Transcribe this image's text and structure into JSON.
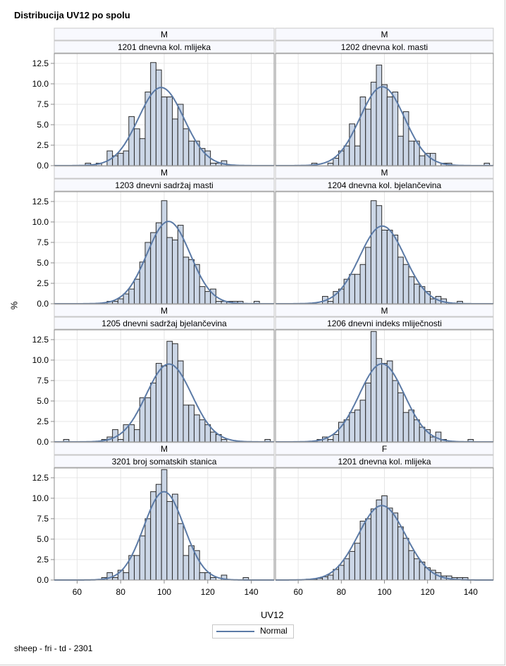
{
  "title": "Distribucija UV12 po spolu",
  "footnote": "sheep - fri - td - 2301",
  "legend": {
    "label": "Normal"
  },
  "colors": {
    "bar_fill": "#cbd6e6",
    "bar_stroke": "#2b2b2b",
    "curve": "#5b7aa6",
    "strip_bg": "#f8f9fe",
    "grid": "#e6e6e6"
  },
  "chart_data": {
    "type": "histogram-panel",
    "title": "Distribucija UV12 po spolu",
    "xlabel": "UV12",
    "ylabel": "%",
    "xlim": [
      49.5,
      150.5
    ],
    "ylim": [
      0,
      13.7
    ],
    "xticks": [
      60,
      80,
      100,
      120,
      140
    ],
    "yticks": [
      "0.0",
      "2.5",
      "5.0",
      "7.5",
      "10.0",
      "12.5"
    ],
    "bin_width": 2.5,
    "grid": true,
    "legend_position": "bottom-center",
    "panels": [
      {
        "sex": "M",
        "trait": "1201 dnevna kol. mlijeka",
        "normal": {
          "mean": 98.6,
          "peak": 9.55
        },
        "bins": [
          [
            65,
            0.3
          ],
          [
            70,
            0.3
          ],
          [
            75,
            1.8
          ],
          [
            77.5,
            1.2
          ],
          [
            80,
            1.5
          ],
          [
            82.5,
            1.8
          ],
          [
            85,
            6.0
          ],
          [
            87.5,
            4.5
          ],
          [
            90,
            3.3
          ],
          [
            92.5,
            9.0
          ],
          [
            95,
            12.6
          ],
          [
            97.5,
            11.7
          ],
          [
            100,
            8.4
          ],
          [
            102.5,
            8.4
          ],
          [
            105,
            5.7
          ],
          [
            107.5,
            7.5
          ],
          [
            110,
            4.5
          ],
          [
            112.5,
            3.0
          ],
          [
            115,
            3.0
          ],
          [
            117.5,
            2.1
          ],
          [
            120,
            1.8
          ],
          [
            122.5,
            0.3
          ],
          [
            125,
            0.3
          ],
          [
            127.5,
            0.6
          ]
        ]
      },
      {
        "sex": "M",
        "trait": "1202 dnevna kol. masti",
        "normal": {
          "mean": 99.0,
          "peak": 9.64
        },
        "bins": [
          [
            67.5,
            0.3
          ],
          [
            75,
            0.3
          ],
          [
            77.5,
            0.9
          ],
          [
            80,
            1.8
          ],
          [
            82.5,
            2.4
          ],
          [
            85,
            5.1
          ],
          [
            87.5,
            2.4
          ],
          [
            90,
            8.4
          ],
          [
            92.5,
            6.9
          ],
          [
            95,
            10.2
          ],
          [
            97.5,
            12.3
          ],
          [
            100,
            9.9
          ],
          [
            102.5,
            8.4
          ],
          [
            105,
            9.0
          ],
          [
            107.5,
            3.6
          ],
          [
            110,
            6.6
          ],
          [
            112.5,
            3.0
          ],
          [
            115,
            3.0
          ],
          [
            117.5,
            1.2
          ],
          [
            120,
            1.5
          ],
          [
            122.5,
            1.5
          ],
          [
            127.5,
            0.3
          ],
          [
            130,
            0.3
          ],
          [
            147.5,
            0.3
          ]
        ]
      },
      {
        "sex": "M",
        "trait": "1203 dnevni sadržaj masti",
        "normal": {
          "mean": 102.0,
          "peak": 10.07
        },
        "bins": [
          [
            75,
            0.3
          ],
          [
            77.5,
            0.3
          ],
          [
            80,
            0.6
          ],
          [
            82.5,
            1.2
          ],
          [
            85,
            1.8
          ],
          [
            87.5,
            3.0
          ],
          [
            90,
            5.1
          ],
          [
            92.5,
            7.5
          ],
          [
            95,
            8.7
          ],
          [
            97.5,
            9.9
          ],
          [
            100,
            12.6
          ],
          [
            102.5,
            8.1
          ],
          [
            105,
            7.8
          ],
          [
            107.5,
            9.6
          ],
          [
            110,
            5.7
          ],
          [
            112.5,
            5.4
          ],
          [
            115,
            4.8
          ],
          [
            117.5,
            2.1
          ],
          [
            120,
            1.5
          ],
          [
            122.5,
            1.8
          ],
          [
            125,
            0.3
          ],
          [
            127.5,
            0.3
          ],
          [
            130,
            0.3
          ],
          [
            132.5,
            0.3
          ],
          [
            135,
            0.3
          ],
          [
            142.5,
            0.3
          ]
        ]
      },
      {
        "sex": "M",
        "trait": "1204 dnevna kol. bjelančevina",
        "normal": {
          "mean": 99.0,
          "peak": 9.5
        },
        "bins": [
          [
            72.5,
            0.9
          ],
          [
            75,
            0.3
          ],
          [
            77.5,
            1.5
          ],
          [
            80,
            1.8
          ],
          [
            82.5,
            3.0
          ],
          [
            85,
            3.6
          ],
          [
            87.5,
            3.6
          ],
          [
            90,
            4.8
          ],
          [
            92.5,
            6.9
          ],
          [
            95,
            12.6
          ],
          [
            97.5,
            12.0
          ],
          [
            100,
            9.0
          ],
          [
            102.5,
            9.0
          ],
          [
            105,
            8.4
          ],
          [
            107.5,
            5.7
          ],
          [
            110,
            4.8
          ],
          [
            112.5,
            3.3
          ],
          [
            115,
            2.4
          ],
          [
            117.5,
            2.1
          ],
          [
            120,
            1.5
          ],
          [
            122.5,
            0.6
          ],
          [
            125,
            0.9
          ],
          [
            127.5,
            0.6
          ],
          [
            135,
            0.3
          ]
        ]
      },
      {
        "sex": "M",
        "trait": "1205 dnevni sadržaj bjelančevina",
        "normal": {
          "mean": 102.2,
          "peak": 9.52
        },
        "bins": [
          [
            55,
            0.3
          ],
          [
            72.5,
            0.3
          ],
          [
            75,
            0.6
          ],
          [
            77.5,
            1.5
          ],
          [
            80,
            0.3
          ],
          [
            82.5,
            2.1
          ],
          [
            85,
            2.1
          ],
          [
            87.5,
            1.5
          ],
          [
            90,
            5.4
          ],
          [
            92.5,
            5.4
          ],
          [
            95,
            7.2
          ],
          [
            97.5,
            9.6
          ],
          [
            100,
            9.3
          ],
          [
            102.5,
            12.3
          ],
          [
            105,
            12.0
          ],
          [
            107.5,
            9.9
          ],
          [
            110,
            4.5
          ],
          [
            112.5,
            4.5
          ],
          [
            115,
            3.3
          ],
          [
            117.5,
            2.7
          ],
          [
            120,
            2.1
          ],
          [
            122.5,
            1.2
          ],
          [
            125,
            0.9
          ],
          [
            127.5,
            0.3
          ],
          [
            147.5,
            0.3
          ]
        ]
      },
      {
        "sex": "M",
        "trait": "1206 dnevni indeks mliječnosti",
        "normal": {
          "mean": 98.8,
          "peak": 9.55
        },
        "bins": [
          [
            70,
            0.3
          ],
          [
            72.5,
            0.6
          ],
          [
            75,
            0.3
          ],
          [
            77.5,
            0.9
          ],
          [
            80,
            2.4
          ],
          [
            82.5,
            2.7
          ],
          [
            85,
            3.6
          ],
          [
            87.5,
            3.9
          ],
          [
            90,
            5.1
          ],
          [
            92.5,
            7.2
          ],
          [
            95,
            13.5
          ],
          [
            97.5,
            10.2
          ],
          [
            100,
            9.6
          ],
          [
            102.5,
            9.9
          ],
          [
            105,
            7.5
          ],
          [
            107.5,
            6.0
          ],
          [
            110,
            3.6
          ],
          [
            112.5,
            3.9
          ],
          [
            115,
            2.7
          ],
          [
            117.5,
            1.8
          ],
          [
            120,
            1.5
          ],
          [
            122.5,
            0.6
          ],
          [
            125,
            1.2
          ],
          [
            127.5,
            0.3
          ],
          [
            140,
            0.3
          ]
        ]
      },
      {
        "sex": "M",
        "trait": "3201 broj somatskih stanica",
        "normal": {
          "mean": 99.9,
          "peak": 10.8
        },
        "bins": [
          [
            72.5,
            0.3
          ],
          [
            75,
            0.9
          ],
          [
            77.5,
            0.3
          ],
          [
            80,
            1.2
          ],
          [
            82.5,
            0.9
          ],
          [
            85,
            3.0
          ],
          [
            87.5,
            3.0
          ],
          [
            90,
            5.4
          ],
          [
            92.5,
            7.5
          ],
          [
            95,
            10.8
          ],
          [
            97.5,
            11.7
          ],
          [
            100,
            13.5
          ],
          [
            102.5,
            9.6
          ],
          [
            105,
            10.5
          ],
          [
            107.5,
            6.9
          ],
          [
            110,
            3.0
          ],
          [
            112.5,
            4.2
          ],
          [
            115,
            3.6
          ],
          [
            117.5,
            0.9
          ],
          [
            120,
            0.9
          ],
          [
            122.5,
            0.3
          ],
          [
            127.5,
            0.6
          ],
          [
            137.5,
            0.3
          ]
        ]
      },
      {
        "sex": "F",
        "trait": "1201 dnevna kol. mlijeka",
        "normal": {
          "mean": 98.8,
          "peak": 9.1
        },
        "bins": [
          [
            65,
            0.1
          ],
          [
            67.5,
            0.1
          ],
          [
            70,
            0.2
          ],
          [
            72.5,
            0.4
          ],
          [
            75,
            0.6
          ],
          [
            77.5,
            1.3
          ],
          [
            80,
            1.8
          ],
          [
            82.5,
            2.6
          ],
          [
            85,
            3.5
          ],
          [
            87.5,
            4.5
          ],
          [
            90,
            7.2
          ],
          [
            92.5,
            7.5
          ],
          [
            95,
            8.7
          ],
          [
            97.5,
            9.8
          ],
          [
            100,
            10.3
          ],
          [
            102.5,
            8.8
          ],
          [
            105,
            8.2
          ],
          [
            107.5,
            6.5
          ],
          [
            110,
            5.1
          ],
          [
            112.5,
            3.6
          ],
          [
            115,
            2.6
          ],
          [
            117.5,
            2.2
          ],
          [
            120,
            1.5
          ],
          [
            122.5,
            1.2
          ],
          [
            125,
            0.9
          ],
          [
            127.5,
            0.5
          ],
          [
            130,
            0.5
          ],
          [
            132.5,
            0.3
          ],
          [
            135,
            0.3
          ],
          [
            137.5,
            0.3
          ]
        ]
      }
    ]
  }
}
